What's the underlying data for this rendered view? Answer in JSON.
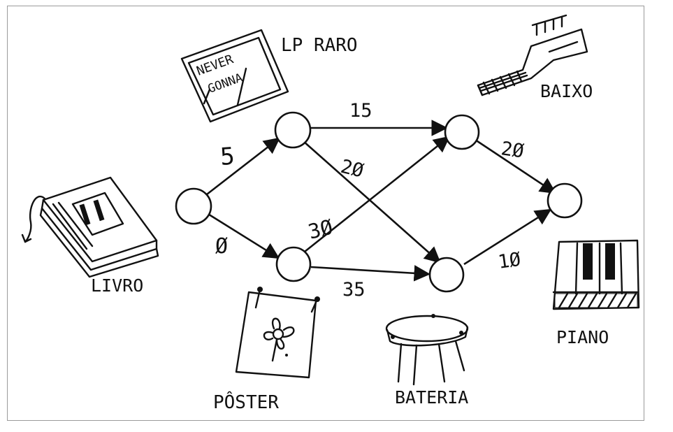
{
  "diagram": {
    "nodes": [
      {
        "id": "livro"
      },
      {
        "id": "lp"
      },
      {
        "id": "poster"
      },
      {
        "id": "baixo"
      },
      {
        "id": "bateria"
      },
      {
        "id": "piano"
      }
    ],
    "edges": [
      {
        "from": "livro",
        "to": "lp",
        "weight": "5"
      },
      {
        "from": "livro",
        "to": "poster",
        "weight": "Ø"
      },
      {
        "from": "lp",
        "to": "baixo",
        "weight": "15"
      },
      {
        "from": "lp",
        "to": "bateria",
        "weight": "2Ø"
      },
      {
        "from": "poster",
        "to": "baixo",
        "weight": "3Ø"
      },
      {
        "from": "poster",
        "to": "bateria",
        "weight": "35"
      },
      {
        "from": "baixo",
        "to": "piano",
        "weight": "2Ø"
      },
      {
        "from": "bateria",
        "to": "piano",
        "weight": "1Ø"
      }
    ],
    "item_labels": {
      "lp": "LP RARO",
      "baixo": "BAIXO",
      "livro": "LIVRO",
      "piano": "PIANO",
      "poster": "PÔSTER",
      "bateria": "BATERIA"
    },
    "record_text": {
      "line1": "NEVER",
      "line2": "GONNA"
    }
  }
}
